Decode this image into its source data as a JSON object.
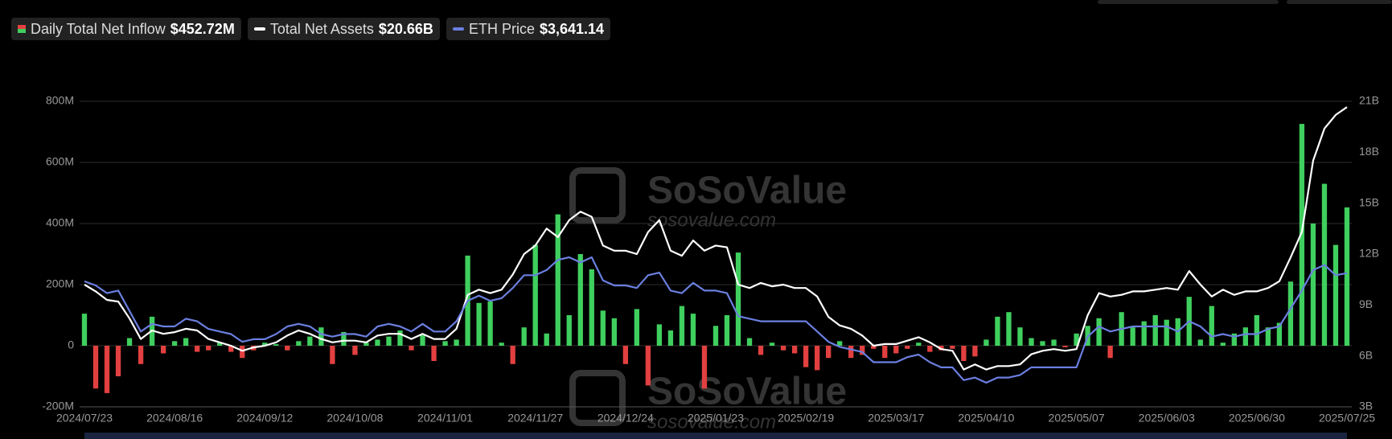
{
  "chart_data": {
    "type": "bar",
    "watermark": {
      "brand": "SoSoValue",
      "url": "sosovalue.com"
    },
    "categories": [
      "2024/07/23",
      null,
      null,
      null,
      null,
      null,
      null,
      null,
      "2024/08/16",
      null,
      null,
      null,
      null,
      null,
      null,
      null,
      "2024/09/12",
      null,
      null,
      null,
      null,
      null,
      null,
      null,
      "2024/10/08",
      null,
      null,
      null,
      null,
      null,
      null,
      null,
      "2024/11/01",
      null,
      null,
      null,
      null,
      null,
      null,
      null,
      "2024/11/27",
      null,
      null,
      null,
      null,
      null,
      null,
      null,
      "2024/12/24",
      null,
      null,
      null,
      null,
      null,
      null,
      null,
      "2025/01/23",
      null,
      null,
      null,
      null,
      null,
      null,
      null,
      "2025/02/19",
      null,
      null,
      null,
      null,
      null,
      null,
      null,
      "2025/03/17",
      null,
      null,
      null,
      null,
      null,
      null,
      null,
      "2025/04/10",
      null,
      null,
      null,
      null,
      null,
      null,
      null,
      "2025/05/07",
      null,
      null,
      null,
      null,
      null,
      null,
      null,
      "2025/06/03",
      null,
      null,
      null,
      null,
      null,
      null,
      null,
      "2025/06/30",
      null,
      null,
      null,
      null,
      null,
      null,
      null,
      "2025/07/25"
    ],
    "ylim": [
      -200,
      800
    ],
    "yticks": [
      {
        "value": -200,
        "label": "-200M"
      },
      0,
      {
        "value": 200,
        "label": "200M"
      },
      {
        "value": 400,
        "label": "400M"
      },
      {
        "value": 600,
        "label": "600M"
      },
      {
        "value": 800,
        "label": "800M"
      }
    ],
    "y2lim": [
      3,
      21
    ],
    "y2ticks": [
      {
        "value": 3,
        "label": "3B"
      },
      {
        "value": 6,
        "label": "6B"
      },
      {
        "value": 9,
        "label": "9B"
      },
      {
        "value": 12,
        "label": "12B"
      },
      {
        "value": 15,
        "label": "15B"
      },
      {
        "value": 18,
        "label": "18B"
      },
      {
        "value": 21,
        "label": "21B"
      }
    ],
    "grid": true,
    "series": [
      {
        "name": "Daily Total Net Inflow",
        "type": "bar",
        "color": "#3fcf5e",
        "negative_color": "#e24040",
        "latest_label": "$452.72M",
        "values": [
          105,
          -140,
          -155,
          -100,
          25,
          -60,
          95,
          -25,
          15,
          25,
          -20,
          -15,
          10,
          -20,
          -40,
          -15,
          10,
          5,
          -15,
          15,
          30,
          60,
          -60,
          45,
          -30,
          10,
          20,
          30,
          50,
          -15,
          35,
          -50,
          15,
          20,
          295,
          140,
          145,
          10,
          -60,
          60,
          330,
          40,
          430,
          100,
          300,
          250,
          115,
          90,
          -60,
          120,
          -130,
          70,
          50,
          130,
          105,
          -140,
          65,
          100,
          305,
          25,
          -30,
          10,
          -15,
          -25,
          -70,
          -80,
          -40,
          15,
          -40,
          -30,
          -10,
          -40,
          -25,
          -10,
          10,
          -20,
          -15,
          -10,
          -50,
          -35,
          20,
          95,
          110,
          60,
          25,
          15,
          20,
          -5,
          40,
          65,
          90,
          -40,
          110,
          60,
          80,
          100,
          85,
          90,
          160,
          20,
          130,
          10,
          40,
          60,
          100,
          60,
          75,
          210,
          726,
          400,
          530,
          330,
          452.72
        ]
      },
      {
        "name": "Total Net Assets",
        "type": "line",
        "axis": "y2",
        "color": "#ffffff",
        "latest_label": "$20.66B",
        "values": [
          10.2,
          9.8,
          9.3,
          9.2,
          8.2,
          7.0,
          7.5,
          7.3,
          7.4,
          7.6,
          7.5,
          7.0,
          6.8,
          6.6,
          6.3,
          6.5,
          6.6,
          6.8,
          7.2,
          7.5,
          7.3,
          7.0,
          6.8,
          6.9,
          6.9,
          6.8,
          7.2,
          7.3,
          7.3,
          7.0,
          7.3,
          7.0,
          7.0,
          7.6,
          9.6,
          9.9,
          9.7,
          9.9,
          10.8,
          12.0,
          12.5,
          13.5,
          13.0,
          14.0,
          14.5,
          14.2,
          12.5,
          12.2,
          12.2,
          12.0,
          13.3,
          14.0,
          12.2,
          11.9,
          12.8,
          12.2,
          12.5,
          12.4,
          10.2,
          10.0,
          10.3,
          10.1,
          10.2,
          10.0,
          10.0,
          9.5,
          8.3,
          7.8,
          7.6,
          7.2,
          6.6,
          6.7,
          6.7,
          6.9,
          7.1,
          6.8,
          6.4,
          6.3,
          5.2,
          5.5,
          5.2,
          5.4,
          5.4,
          5.5,
          6.1,
          6.3,
          6.4,
          6.3,
          6.4,
          8.4,
          9.7,
          9.5,
          9.6,
          9.8,
          9.8,
          9.9,
          10.0,
          9.9,
          11.0,
          10.2,
          9.5,
          9.9,
          9.6,
          9.8,
          9.8,
          10.0,
          10.4,
          11.8,
          13.3,
          17.5,
          19.4,
          20.2,
          20.66
        ]
      },
      {
        "name": "ETH Price",
        "type": "line",
        "axis": "none",
        "color": "#6b7fe0",
        "latest_label": "$3,641.14",
        "values": [
          3480,
          3400,
          3250,
          3300,
          2900,
          2500,
          2650,
          2600,
          2600,
          2750,
          2700,
          2550,
          2500,
          2450,
          2300,
          2350,
          2350,
          2450,
          2600,
          2650,
          2600,
          2450,
          2400,
          2450,
          2450,
          2400,
          2600,
          2650,
          2600,
          2500,
          2650,
          2500,
          2500,
          2700,
          3100,
          3200,
          3100,
          3150,
          3350,
          3600,
          3600,
          3700,
          3900,
          3950,
          3850,
          3950,
          3500,
          3400,
          3400,
          3350,
          3600,
          3650,
          3300,
          3250,
          3450,
          3300,
          3300,
          3250,
          2800,
          2750,
          2700,
          2700,
          2700,
          2700,
          2700,
          2500,
          2300,
          2200,
          2150,
          2100,
          1900,
          1900,
          1900,
          2000,
          2050,
          1900,
          1800,
          1800,
          1550,
          1600,
          1500,
          1600,
          1600,
          1650,
          1800,
          1800,
          1800,
          1800,
          1800,
          2400,
          2600,
          2500,
          2550,
          2600,
          2600,
          2600,
          2600,
          2500,
          2700,
          2600,
          2400,
          2450,
          2400,
          2450,
          2450,
          2550,
          2600,
          2950,
          3300,
          3700,
          3800,
          3600,
          3641.14
        ]
      }
    ]
  }
}
